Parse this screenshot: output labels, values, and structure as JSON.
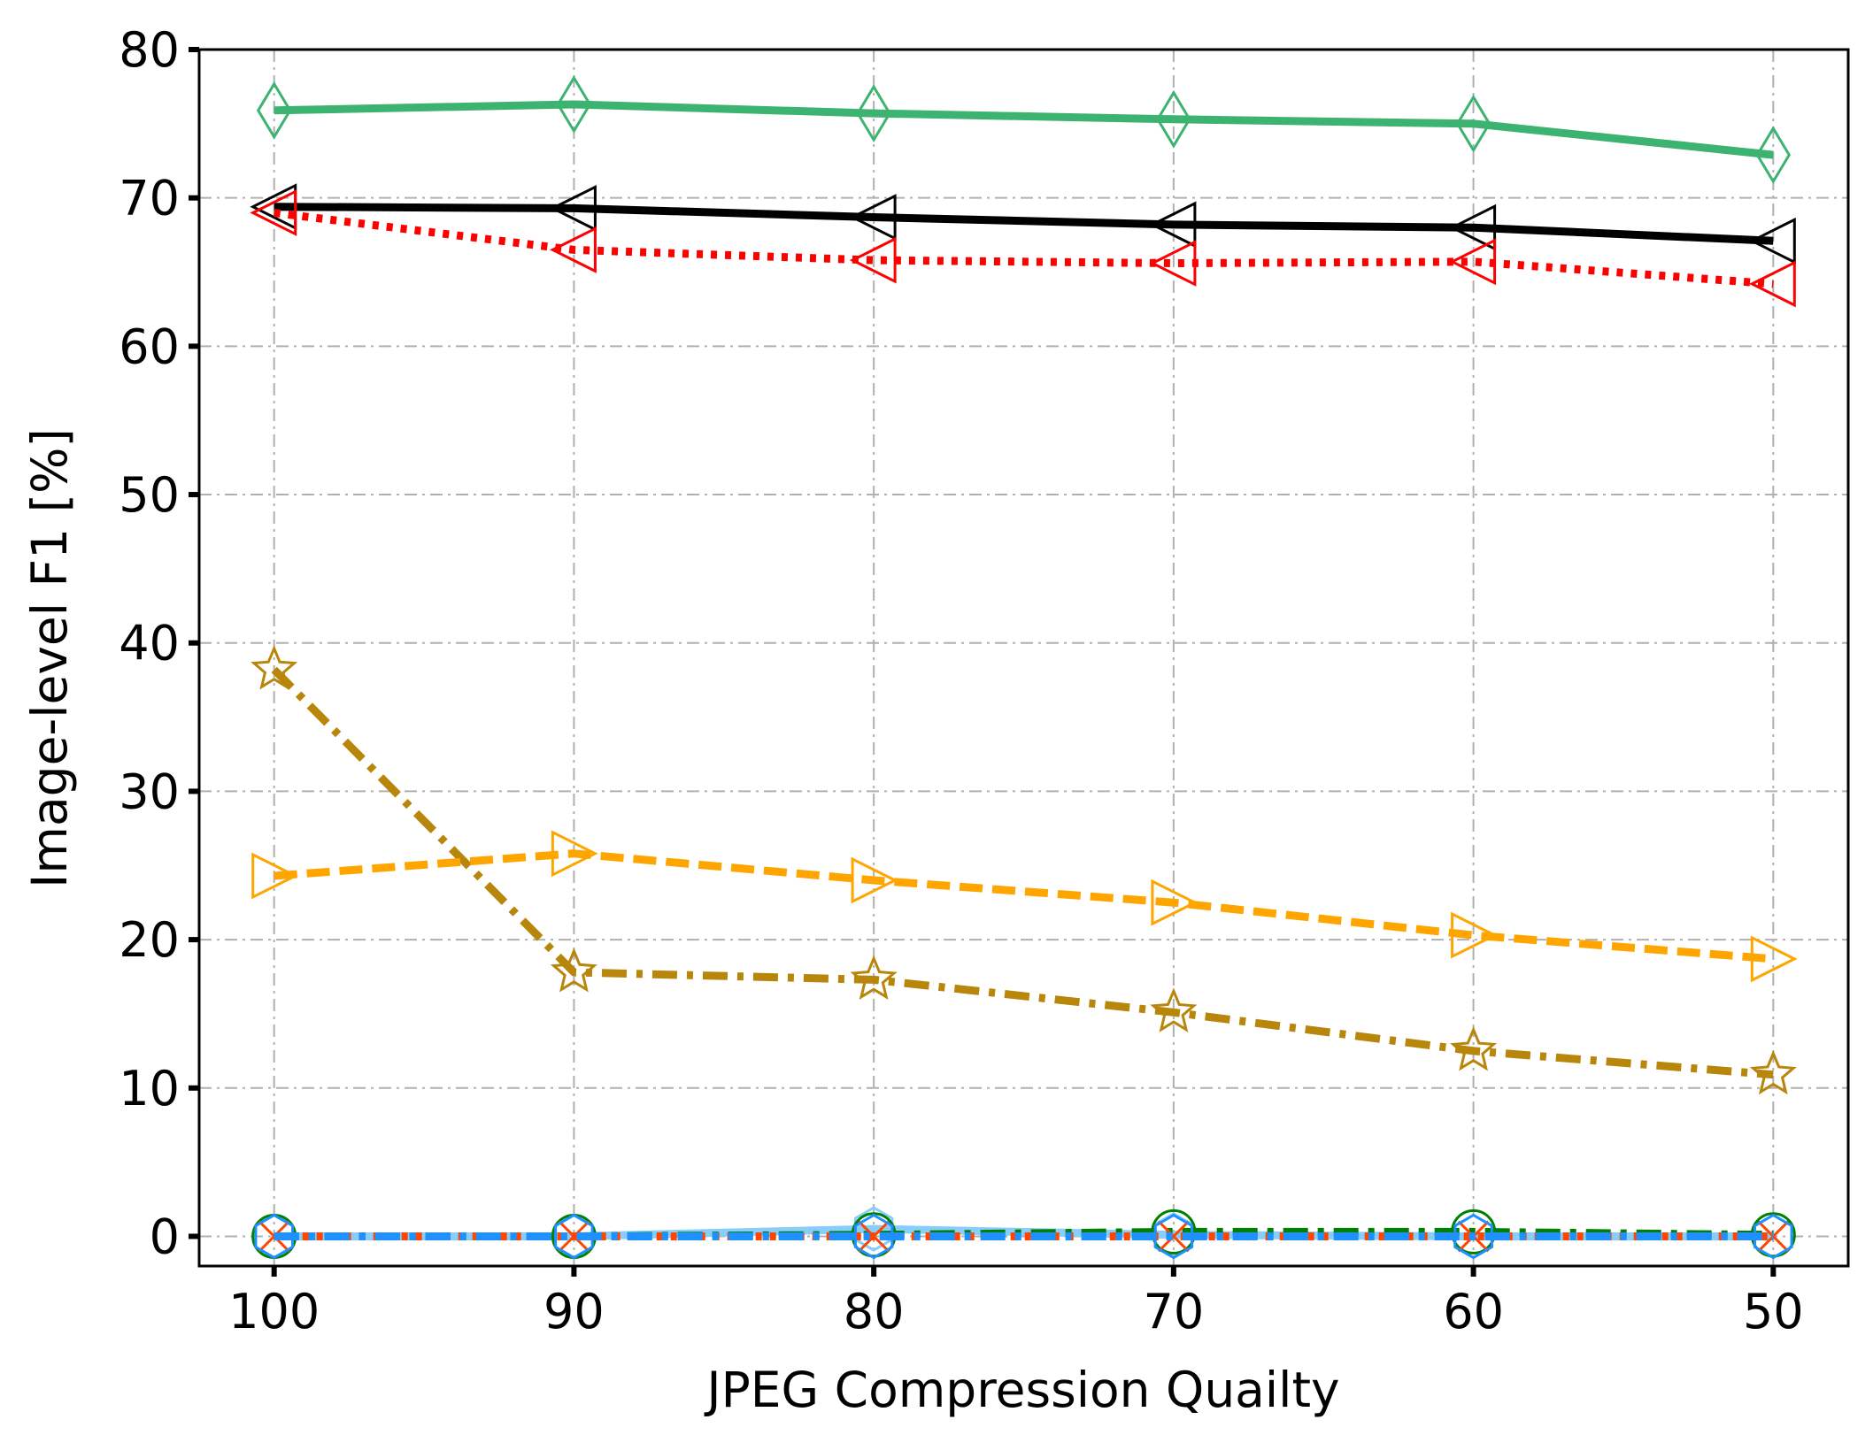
{
  "chart_data": {
    "type": "line",
    "xlabel": "JPEG Compression Quailty",
    "ylabel": "Image-level F1 [%]",
    "categories": [
      "100",
      "90",
      "80",
      "70",
      "60",
      "50"
    ],
    "ylim": [
      -2,
      80
    ],
    "yticks": [
      0,
      10,
      20,
      30,
      40,
      50,
      60,
      70,
      80
    ],
    "grid": true,
    "series": [
      {
        "color": "#3cb371",
        "linestyle": "solid",
        "marker": "diamond",
        "values": [
          75.9,
          76.3,
          75.7,
          75.3,
          75.0,
          72.9
        ]
      },
      {
        "color": "#000000",
        "linestyle": "solid",
        "marker": "triangle-left",
        "values": [
          69.4,
          69.3,
          68.7,
          68.2,
          68.0,
          67.1
        ]
      },
      {
        "color": "#ff0000",
        "linestyle": "dotted",
        "marker": "triangle-left",
        "values": [
          69.0,
          66.5,
          65.8,
          65.6,
          65.7,
          64.2
        ]
      },
      {
        "color": "#b8860b",
        "linestyle": "dashdot",
        "marker": "star",
        "values": [
          38.2,
          17.8,
          17.3,
          15.1,
          12.5,
          10.9
        ]
      },
      {
        "color": "#ffa500",
        "linestyle": "dashed",
        "marker": "triangle-right",
        "values": [
          24.3,
          25.8,
          24.0,
          22.5,
          20.3,
          18.7
        ]
      },
      {
        "color": "#87cefa",
        "linestyle": "solid",
        "marker": "hexagon",
        "values": [
          0,
          0,
          0.5,
          0.1,
          0,
          0
        ]
      },
      {
        "color": "#008000",
        "linestyle": "dashdot",
        "marker": "circle",
        "values": [
          0,
          0,
          0.1,
          0.3,
          0.3,
          0.1
        ]
      },
      {
        "color": "#ff4500",
        "linestyle": "dotted",
        "marker": "x",
        "values": [
          0,
          0,
          0,
          0,
          0,
          0
        ]
      },
      {
        "color": "#1e90ff",
        "linestyle": "dashdot",
        "marker": "hexagon",
        "values": [
          0,
          0,
          0,
          0,
          0,
          0
        ]
      }
    ]
  }
}
